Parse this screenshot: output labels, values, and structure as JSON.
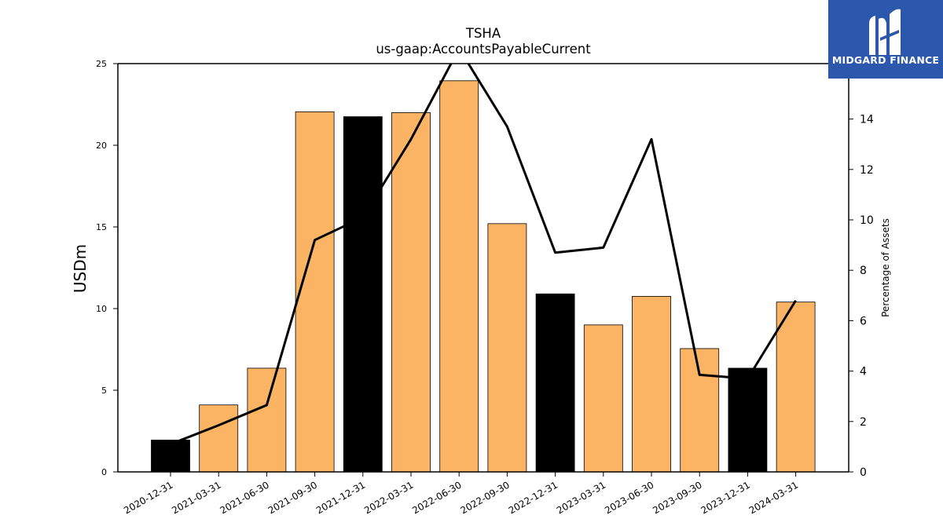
{
  "logo": {
    "text": "MIDGARD FINANCE",
    "icon": "midgard-logo-icon",
    "color": "#2b58ad"
  },
  "chart_data": {
    "type": "bar",
    "title": "TSHA",
    "subtitle": "us-gaap:AccountsPayableCurrent",
    "ylabel": "USDm",
    "y2label": "Percentage of Assets",
    "categories": [
      "2020-12-31",
      "2021-03-31",
      "2021-06-30",
      "2021-09-30",
      "2021-12-31",
      "2022-03-31",
      "2022-06-30",
      "2022-09-30",
      "2022-12-31",
      "2023-03-31",
      "2023-06-30",
      "2023-09-30",
      "2023-12-31",
      "2024-03-31"
    ],
    "series": [
      {
        "type": "bar",
        "values": [
          1.95,
          4.1,
          6.35,
          22.05,
          21.75,
          22.0,
          23.95,
          15.2,
          10.9,
          9.0,
          10.75,
          7.55,
          6.35,
          10.4
        ]
      },
      {
        "type": "line",
        "axis": "right",
        "values": [
          1.1,
          1.85,
          2.65,
          9.2,
          10.1,
          13.2,
          16.8,
          13.7,
          8.7,
          8.9,
          13.2,
          3.85,
          3.7,
          6.8
        ]
      }
    ],
    "bar_colors": [
      "#000000",
      "#fbb364",
      "#fbb364",
      "#fbb364",
      "#000000",
      "#fbb364",
      "#fbb364",
      "#fbb364",
      "#000000",
      "#fbb364",
      "#fbb364",
      "#fbb364",
      "#000000",
      "#fbb364"
    ],
    "ylim": [
      0,
      25
    ],
    "y2lim": [
      0,
      16.2
    ],
    "yticks": [
      "0",
      "5",
      "10",
      "15",
      "20",
      "25"
    ],
    "yticks_values": [
      0,
      5,
      10,
      15,
      20,
      25
    ],
    "y2ticks": [
      "0",
      "2",
      "4",
      "6",
      "8",
      "10",
      "12",
      "14"
    ],
    "y2ticks_values": [
      0,
      2,
      4,
      6,
      8,
      10,
      12,
      14
    ],
    "grid": false,
    "legend": "none"
  }
}
